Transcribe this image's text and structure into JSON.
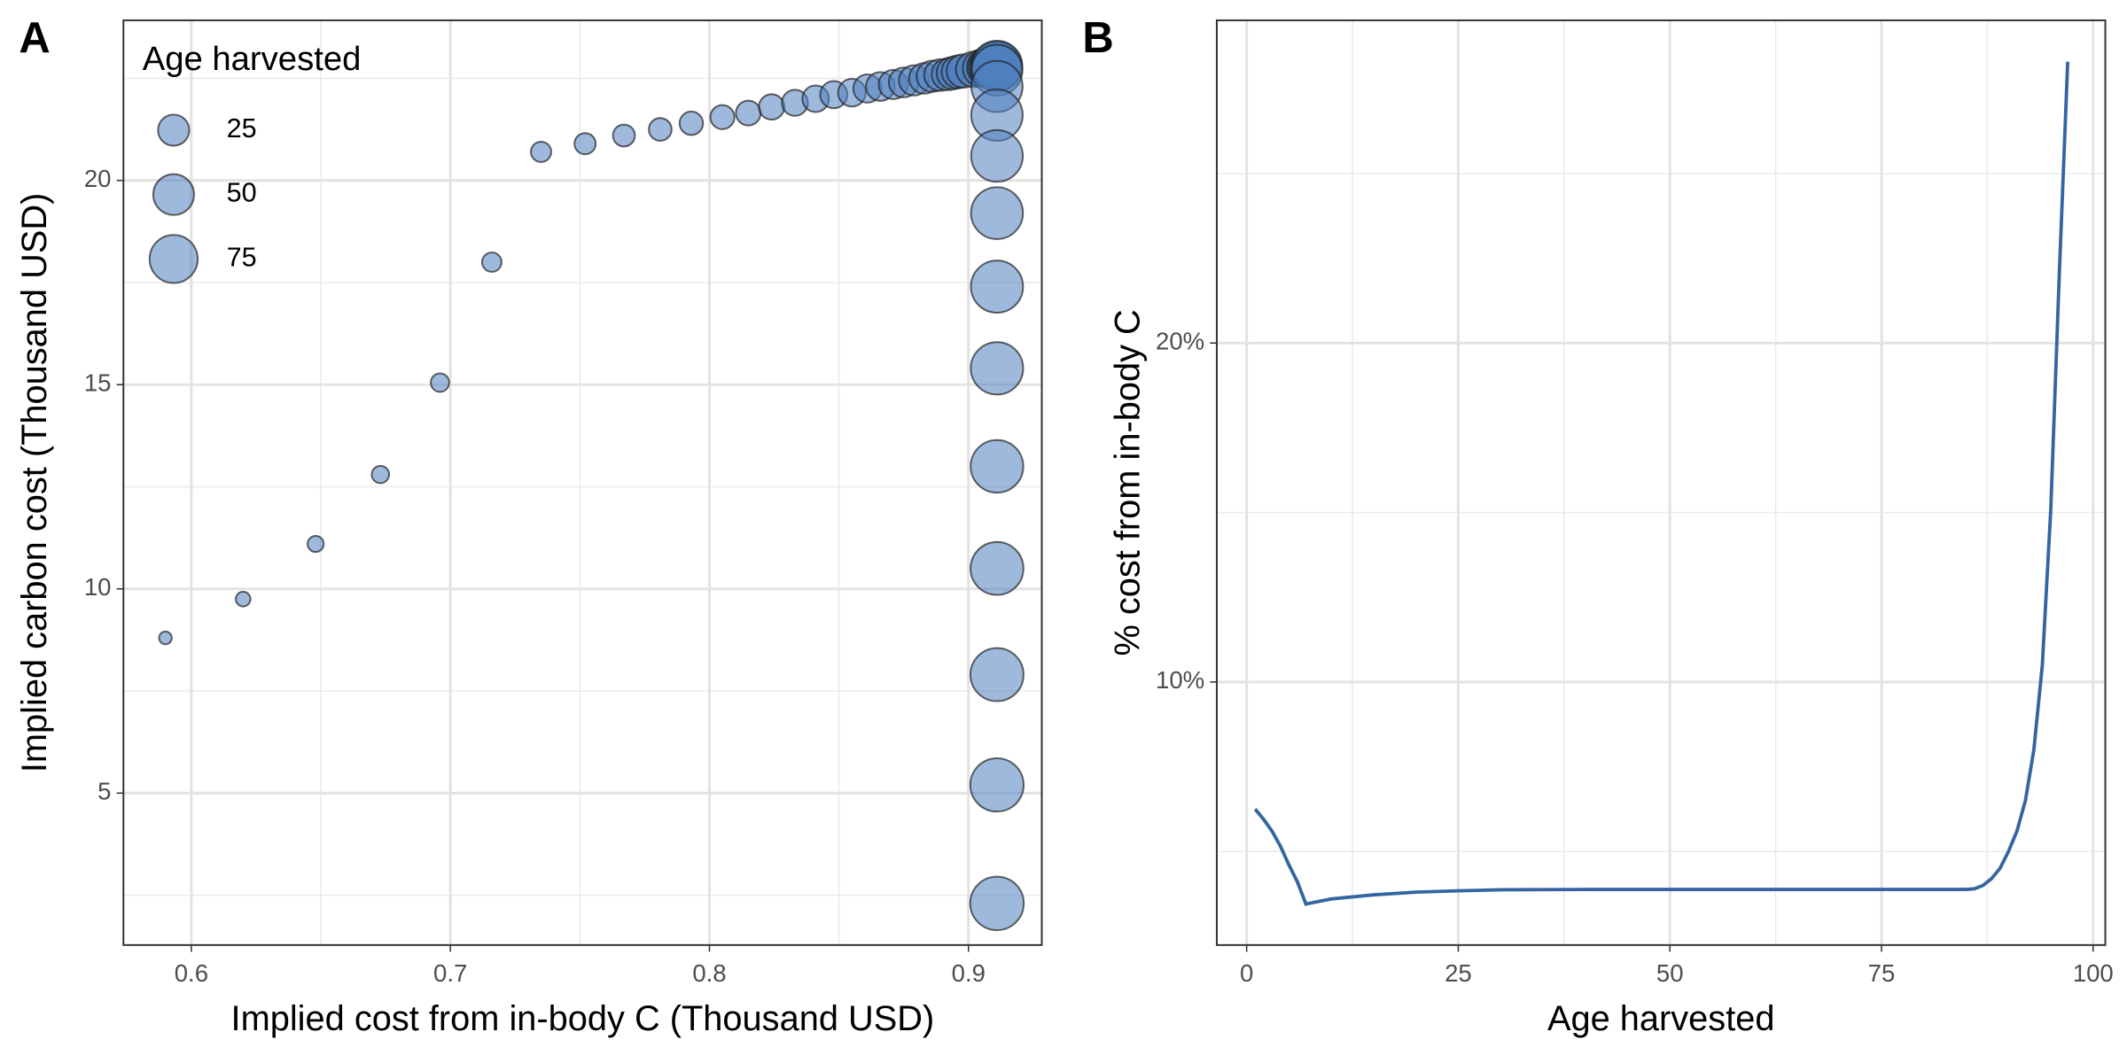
{
  "chart_data": [
    {
      "type": "scatter",
      "panel_label": "A",
      "x_label": "Implied cost from in-body C (Thousand USD)",
      "y_label": "Implied carbon cost (Thousand USD)",
      "x": [
        0.59,
        0.62,
        0.648,
        0.673,
        0.696,
        0.716,
        0.735,
        0.752,
        0.767,
        0.781,
        0.793,
        0.805,
        0.815,
        0.824,
        0.833,
        0.841,
        0.848,
        0.855,
        0.861,
        0.866,
        0.871,
        0.875,
        0.879,
        0.883,
        0.886,
        0.889,
        0.892,
        0.894,
        0.896,
        0.898,
        0.902,
        0.905,
        0.907,
        0.908,
        0.909,
        0.91,
        0.91,
        0.911,
        0.911,
        0.911,
        0.911,
        0.911,
        0.911,
        0.911,
        0.911,
        0.911,
        0.911,
        0.911,
        0.911,
        0.911,
        0.911,
        0.911,
        0.911
      ],
      "values": [
        8.8,
        9.75,
        11.1,
        12.8,
        15.05,
        18.0,
        20.7,
        20.9,
        21.1,
        21.25,
        21.4,
        21.55,
        21.65,
        21.8,
        21.9,
        22.0,
        22.1,
        22.15,
        22.25,
        22.3,
        22.35,
        22.4,
        22.45,
        22.5,
        22.55,
        22.58,
        22.6,
        22.63,
        22.66,
        22.68,
        22.72,
        22.75,
        22.77,
        22.78,
        22.79,
        22.8,
        22.8,
        22.8,
        22.8,
        22.8,
        22.8,
        22.7,
        22.3,
        21.6,
        20.6,
        19.2,
        17.4,
        15.4,
        13.0,
        10.5,
        7.9,
        5.2,
        2.3
      ],
      "sizes": [
        1,
        2,
        3,
        4,
        5,
        6,
        7,
        8,
        9,
        10,
        11,
        12,
        13,
        14,
        15,
        16,
        17,
        18,
        19,
        20,
        21,
        22,
        23,
        24,
        25,
        26,
        27,
        28,
        29,
        30,
        35,
        40,
        45,
        50,
        55,
        60,
        65,
        70,
        75,
        80,
        85,
        86,
        87,
        88,
        89,
        90,
        91,
        92,
        93,
        94,
        95,
        96,
        97
      ],
      "color": "#4f7fbf",
      "size_legend": {
        "title": "Age harvested",
        "values": [
          25,
          50,
          75
        ]
      },
      "xlim": [
        0.5738,
        0.9283
      ],
      "xticks": [
        0.6,
        0.7,
        0.8,
        0.9
      ],
      "ylim": [
        1.28,
        23.92
      ],
      "yticks": [
        5,
        10,
        15,
        20
      ],
      "grid": true
    },
    {
      "type": "line",
      "panel_label": "B",
      "x_label": "Age harvested",
      "y_label": "% cost from in-body C",
      "x": [
        1,
        2,
        3,
        4,
        5,
        6,
        7,
        10,
        15,
        20,
        25,
        30,
        40,
        50,
        60,
        70,
        80,
        85,
        86,
        87,
        88,
        89,
        90,
        91,
        92,
        93,
        94,
        95,
        96,
        97
      ],
      "values": [
        6.25,
        5.95,
        5.6,
        5.15,
        4.6,
        4.1,
        3.45,
        3.6,
        3.72,
        3.8,
        3.84,
        3.87,
        3.88,
        3.88,
        3.88,
        3.88,
        3.88,
        3.88,
        3.9,
        4.0,
        4.2,
        4.5,
        5.0,
        5.6,
        6.5,
        8.0,
        10.5,
        15.1,
        22.0,
        28.3
      ],
      "color": "#3465a0",
      "xlim": [
        -3.53,
        101.44
      ],
      "xticks": [
        0,
        25,
        50,
        75,
        100
      ],
      "ylim": [
        2.24,
        29.52
      ],
      "yticks": [
        {
          "value": 10,
          "label": "10%"
        },
        {
          "value": 20,
          "label": "20%"
        }
      ],
      "grid": true
    }
  ]
}
